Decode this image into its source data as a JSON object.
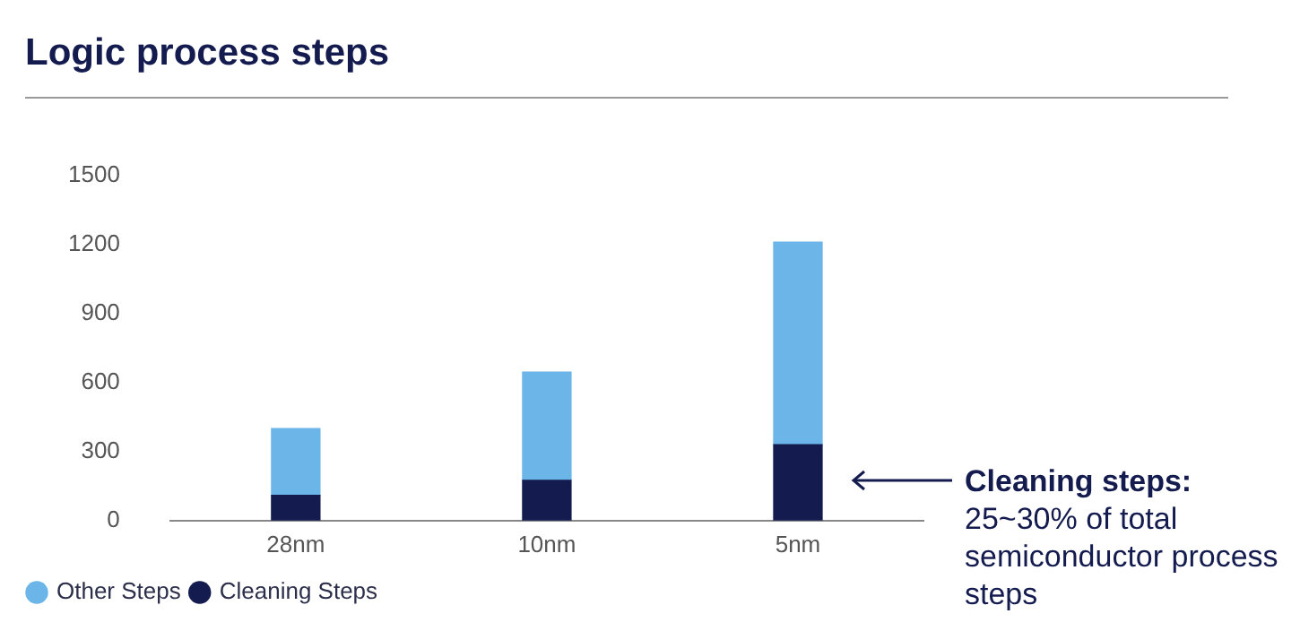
{
  "chart_data": {
    "type": "bar",
    "title": "Logic process steps",
    "categories": [
      "28nm",
      "10nm",
      "5nm"
    ],
    "stacked": true,
    "series": [
      {
        "name": "Cleaning Steps",
        "color": "#141c4f",
        "values": [
          110,
          175,
          330
        ]
      },
      {
        "name": "Other Steps",
        "color": "#6bb5e8",
        "values": [
          290,
          470,
          880
        ]
      }
    ],
    "ylim": [
      0,
      1500
    ],
    "yticks": [
      0,
      300,
      600,
      900,
      1200,
      1500
    ],
    "grid": false,
    "legend": "bottom left",
    "annotations": [
      "Cleaning steps:",
      "25~30% of total semiconductor process steps"
    ]
  }
}
